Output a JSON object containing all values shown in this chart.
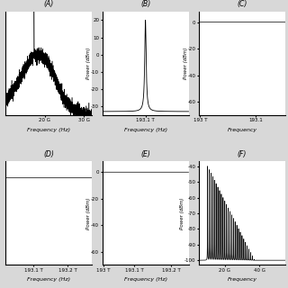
{
  "bg_color": "#d8d8d8",
  "panel_bg": "#ffffff",
  "panel_labels": [
    "(B)",
    "(C)",
    "(D)",
    "(E)",
    "(F)"
  ],
  "layout": {
    "nrows": 2,
    "ncols": 3
  }
}
